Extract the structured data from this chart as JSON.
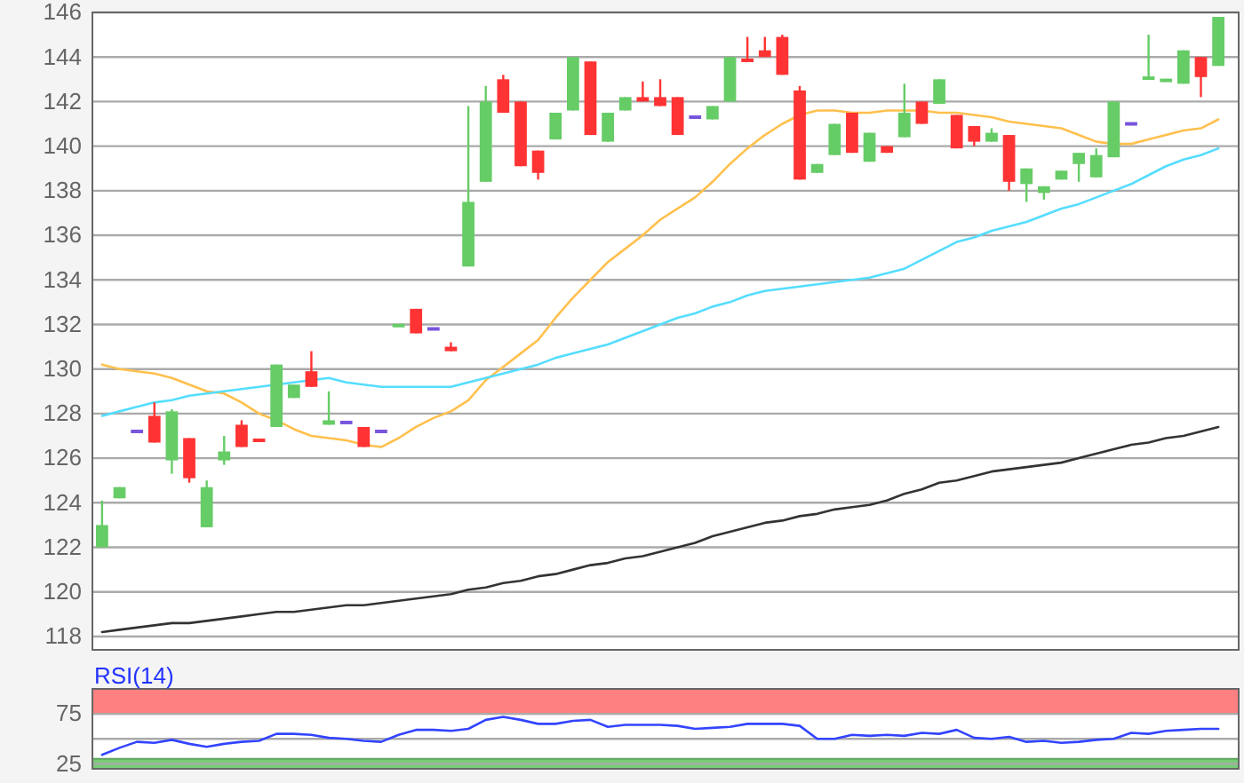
{
  "chart_data": [
    {
      "type": "candlestick",
      "categories": [
        null,
        null,
        null,
        null,
        null,
        null,
        null,
        null,
        null,
        null,
        null,
        null,
        null,
        null,
        null,
        null,
        null,
        null,
        null,
        null,
        null,
        null,
        null,
        null,
        null,
        null,
        null,
        null,
        null,
        null,
        null,
        null,
        null,
        null,
        null,
        null,
        null,
        null,
        null,
        null,
        null,
        null,
        null,
        null,
        null,
        null,
        null,
        null,
        null,
        null,
        null,
        null,
        null,
        null,
        null,
        null,
        null,
        null,
        null,
        null,
        null,
        null,
        null,
        null,
        null
      ],
      "ohlc": [
        [
          122.0,
          124.1,
          122.0,
          123.0
        ],
        [
          124.2,
          124.7,
          124.2,
          124.7
        ],
        [
          127.2,
          127.2,
          127.2,
          127.2
        ],
        [
          127.9,
          128.5,
          126.7,
          126.7
        ],
        [
          125.9,
          128.2,
          125.3,
          128.1
        ],
        [
          126.9,
          126.9,
          124.9,
          125.1
        ],
        [
          122.9,
          125.0,
          122.9,
          124.7
        ],
        [
          125.9,
          127.0,
          125.7,
          126.3
        ],
        [
          127.5,
          127.7,
          126.5,
          126.5
        ],
        [
          126.8,
          126.8,
          126.8,
          126.8
        ],
        [
          127.4,
          130.2,
          127.4,
          130.2
        ],
        [
          128.7,
          129.3,
          128.7,
          129.3
        ],
        [
          129.9,
          130.8,
          129.2,
          129.2
        ],
        [
          127.5,
          129.0,
          127.5,
          127.7
        ],
        [
          127.6,
          127.6,
          127.6,
          127.6
        ],
        [
          127.4,
          127.4,
          126.5,
          126.5
        ],
        [
          127.2,
          127.2,
          127.2,
          127.2
        ],
        [
          131.9,
          132.0,
          131.9,
          132.0
        ],
        [
          132.7,
          132.7,
          131.6,
          131.6
        ],
        [
          131.8,
          131.8,
          131.8,
          131.8
        ],
        [
          131.0,
          131.2,
          130.8,
          130.8
        ],
        [
          134.6,
          141.8,
          134.6,
          137.5
        ],
        [
          138.4,
          142.7,
          138.4,
          142.0
        ],
        [
          143.0,
          143.2,
          141.5,
          141.5
        ],
        [
          142.0,
          142.0,
          139.1,
          139.1
        ],
        [
          139.8,
          139.8,
          138.5,
          138.8
        ],
        [
          140.3,
          141.5,
          140.3,
          141.5
        ],
        [
          141.6,
          144.0,
          141.6,
          144.0
        ],
        [
          143.8,
          143.8,
          140.5,
          140.5
        ],
        [
          140.2,
          141.5,
          140.2,
          141.5
        ],
        [
          141.6,
          142.2,
          141.6,
          142.2
        ],
        [
          142.2,
          142.9,
          142.0,
          142.0
        ],
        [
          142.2,
          143.0,
          141.8,
          141.8
        ],
        [
          142.2,
          142.2,
          140.5,
          140.5
        ],
        [
          141.3,
          141.3,
          141.3,
          141.3
        ],
        [
          141.2,
          141.8,
          141.2,
          141.8
        ],
        [
          142.0,
          144.0,
          142.0,
          144.0
        ],
        [
          143.9,
          144.9,
          143.8,
          143.8
        ],
        [
          144.3,
          144.9,
          144.0,
          144.0
        ],
        [
          144.9,
          145.0,
          143.2,
          143.2
        ],
        [
          142.5,
          142.7,
          138.5,
          138.5
        ],
        [
          138.8,
          139.2,
          138.8,
          139.2
        ],
        [
          139.6,
          141.0,
          139.6,
          141.0
        ],
        [
          141.5,
          141.5,
          139.7,
          139.7
        ],
        [
          139.3,
          140.6,
          139.3,
          140.6
        ],
        [
          140.0,
          140.0,
          139.7,
          139.7
        ],
        [
          140.4,
          142.8,
          140.4,
          141.5
        ],
        [
          142.0,
          142.0,
          141.0,
          141.0
        ],
        [
          141.9,
          143.0,
          141.9,
          143.0
        ],
        [
          141.4,
          141.4,
          139.9,
          139.9
        ],
        [
          140.9,
          140.9,
          140.0,
          140.2
        ],
        [
          140.2,
          140.8,
          140.2,
          140.6
        ],
        [
          140.5,
          140.5,
          138.0,
          138.4
        ],
        [
          138.3,
          139.0,
          137.5,
          139.0
        ],
        [
          137.9,
          138.2,
          137.6,
          138.2
        ],
        [
          138.5,
          138.9,
          138.5,
          138.9
        ],
        [
          139.2,
          139.7,
          138.4,
          139.7
        ],
        [
          138.6,
          139.9,
          138.6,
          139.6
        ],
        [
          139.5,
          142.0,
          139.5,
          142.0
        ],
        [
          141.0,
          141.0,
          141.0,
          141.0
        ],
        [
          143.0,
          145.0,
          143.0,
          143.1
        ],
        [
          142.9,
          143.0,
          142.9,
          143.0
        ],
        [
          142.8,
          144.3,
          142.8,
          144.3
        ],
        [
          144.0,
          144.0,
          142.2,
          143.1
        ],
        [
          143.6,
          145.8,
          143.6,
          145.8
        ]
      ],
      "colors": [
        "#66cc66",
        "#66cc66",
        "#7755dd",
        "#ff3333",
        "#66cc66",
        "#ff3333",
        "#66cc66",
        "#66cc66",
        "#ff3333",
        "#ff3333",
        "#66cc66",
        "#66cc66",
        "#ff3333",
        "#66cc66",
        "#7755dd",
        "#ff3333",
        "#7755dd",
        "#66cc66",
        "#ff3333",
        "#7755dd",
        "#ff3333",
        "#66cc66",
        "#66cc66",
        "#ff3333",
        "#ff3333",
        "#ff3333",
        "#66cc66",
        "#66cc66",
        "#ff3333",
        "#66cc66",
        "#66cc66",
        "#ff3333",
        "#ff3333",
        "#ff3333",
        "#7755dd",
        "#66cc66",
        "#66cc66",
        "#ff3333",
        "#ff3333",
        "#ff3333",
        "#ff3333",
        "#66cc66",
        "#66cc66",
        "#ff3333",
        "#66cc66",
        "#ff3333",
        "#66cc66",
        "#ff3333",
        "#66cc66",
        "#ff3333",
        "#ff3333",
        "#66cc66",
        "#ff3333",
        "#66cc66",
        "#66cc66",
        "#66cc66",
        "#66cc66",
        "#66cc66",
        "#66cc66",
        "#7755dd",
        "#66cc66",
        "#66cc66",
        "#66cc66",
        "#ff3333",
        "#66cc66"
      ],
      "series": [
        {
          "type": "line",
          "color": "#ffc04d",
          "values": [
            130.2,
            130.0,
            129.9,
            129.8,
            129.6,
            129.3,
            129.0,
            128.9,
            128.5,
            128.0,
            127.7,
            127.3,
            127.0,
            126.9,
            126.8,
            126.6,
            126.5,
            126.9,
            127.4,
            127.8,
            128.1,
            128.6,
            129.5,
            130.1,
            130.7,
            131.3,
            132.3,
            133.2,
            134.0,
            134.8,
            135.4,
            136.0,
            136.7,
            137.2,
            137.7,
            138.4,
            139.2,
            139.9,
            140.5,
            141.0,
            141.4,
            141.6,
            141.6,
            141.5,
            141.5,
            141.6,
            141.6,
            141.6,
            141.5,
            141.5,
            141.4,
            141.3,
            141.1,
            141.0,
            140.9,
            140.8,
            140.5,
            140.2,
            140.1,
            140.1,
            140.3,
            140.5,
            140.7,
            140.8,
            141.2
          ]
        },
        {
          "type": "line",
          "color": "#55ddff",
          "values": [
            127.9,
            128.1,
            128.3,
            128.5,
            128.6,
            128.8,
            128.9,
            129.0,
            129.1,
            129.2,
            129.3,
            129.4,
            129.5,
            129.6,
            129.4,
            129.3,
            129.2,
            129.2,
            129.2,
            129.2,
            129.2,
            129.4,
            129.6,
            129.8,
            130.0,
            130.2,
            130.5,
            130.7,
            130.9,
            131.1,
            131.4,
            131.7,
            132.0,
            132.3,
            132.5,
            132.8,
            133.0,
            133.3,
            133.5,
            133.6,
            133.7,
            133.8,
            133.9,
            134.0,
            134.1,
            134.3,
            134.5,
            134.9,
            135.3,
            135.7,
            135.9,
            136.2,
            136.4,
            136.6,
            136.9,
            137.2,
            137.4,
            137.7,
            138.0,
            138.3,
            138.7,
            139.1,
            139.4,
            139.6,
            139.9
          ]
        },
        {
          "type": "line",
          "color": "#333333",
          "values": [
            118.2,
            118.3,
            118.4,
            118.5,
            118.6,
            118.6,
            118.7,
            118.8,
            118.9,
            119.0,
            119.1,
            119.1,
            119.2,
            119.3,
            119.4,
            119.4,
            119.5,
            119.6,
            119.7,
            119.8,
            119.9,
            120.1,
            120.2,
            120.4,
            120.5,
            120.7,
            120.8,
            121.0,
            121.2,
            121.3,
            121.5,
            121.6,
            121.8,
            122.0,
            122.2,
            122.5,
            122.7,
            122.9,
            123.1,
            123.2,
            123.4,
            123.5,
            123.7,
            123.8,
            123.9,
            124.1,
            124.4,
            124.6,
            124.9,
            125.0,
            125.2,
            125.4,
            125.5,
            125.6,
            125.7,
            125.8,
            126.0,
            126.2,
            126.4,
            126.6,
            126.7,
            126.9,
            127.0,
            127.2,
            127.4
          ]
        }
      ],
      "ylim": [
        117.4,
        146
      ],
      "yticks": [
        118,
        120,
        122,
        124,
        126,
        128,
        130,
        132,
        134,
        136,
        138,
        140,
        142,
        144,
        146
      ],
      "grid": "y",
      "tick_labels": "y"
    },
    {
      "type": "line",
      "title": "RSI(14)",
      "categories": [
        null,
        null,
        null,
        null,
        null,
        null,
        null,
        null,
        null,
        null,
        null,
        null,
        null,
        null,
        null,
        null,
        null,
        null,
        null,
        null,
        null,
        null,
        null,
        null,
        null,
        null,
        null,
        null,
        null,
        null,
        null,
        null,
        null,
        null,
        null,
        null,
        null,
        null,
        null,
        null,
        null,
        null,
        null,
        null,
        null,
        null,
        null,
        null,
        null,
        null,
        null,
        null,
        null,
        null,
        null,
        null,
        null,
        null,
        null,
        null,
        null,
        null,
        null,
        null,
        null
      ],
      "series": [
        {
          "color": "#3344ff",
          "values": [
            34,
            41,
            47,
            46,
            49,
            45,
            42,
            45,
            47,
            48,
            55,
            55,
            54,
            51,
            50,
            48,
            47,
            54,
            59,
            59,
            58,
            60,
            69,
            72,
            69,
            65,
            65,
            68,
            69,
            62,
            64,
            64,
            64,
            63,
            60,
            61,
            62,
            65,
            65,
            65,
            63,
            50,
            50,
            54,
            53,
            54,
            53,
            56,
            55,
            59,
            51,
            50,
            52,
            47,
            48,
            46,
            47,
            49,
            50,
            56,
            55,
            58,
            59,
            60,
            60
          ]
        }
      ],
      "ylim": [
        20,
        100
      ],
      "yticks": [
        25,
        {
          "value": 50,
          "label": null
        },
        75
      ],
      "grid": "y",
      "tick_labels": "y",
      "bands": [
        {
          "axis": "y",
          "from": 75,
          "to": 100,
          "color": "#ff8080"
        },
        {
          "axis": "y",
          "from": 20,
          "to": 30,
          "color": "#77cc77"
        }
      ]
    }
  ]
}
